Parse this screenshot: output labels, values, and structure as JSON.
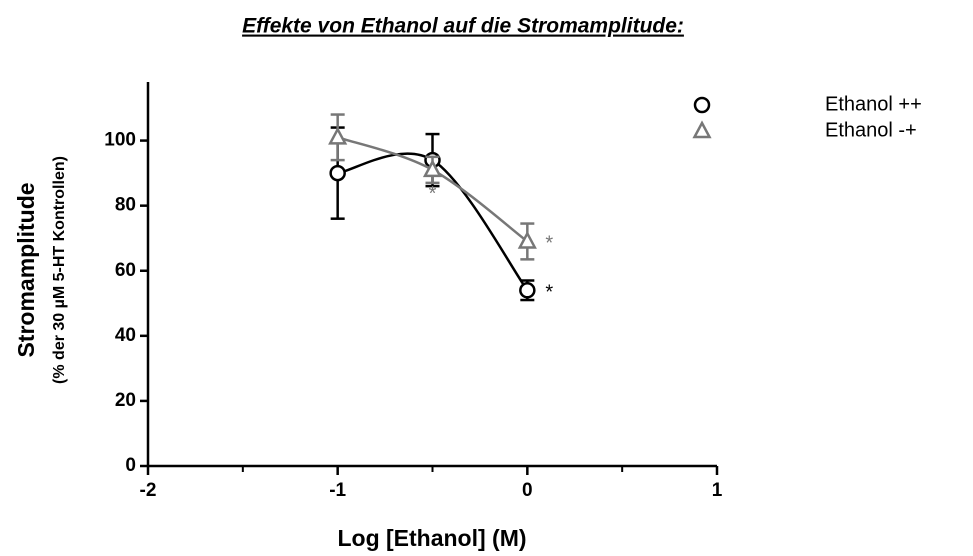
{
  "chart_data": {
    "type": "scatter",
    "title": "Effekte von Ethanol auf die Stromamplitude:",
    "xlabel": "Log [Ethanol] (M)",
    "ylabel": "Stromamplitude",
    "ylabel_sub": "(% der 30 µM 5-HT Kontrollen)",
    "xlim": [
      -2,
      1
    ],
    "xticks": [
      -2,
      -1,
      0,
      1
    ],
    "xminor_ticks": [
      -1.5,
      -0.5,
      0.5
    ],
    "ylim": [
      0,
      118
    ],
    "yticks": [
      0,
      20,
      40,
      60,
      80,
      100
    ],
    "legend": "top-right",
    "fit_curve": true,
    "series": [
      {
        "name": "Ethanol ++",
        "color": "#000000",
        "marker": "circle",
        "x": [
          -1,
          -0.5,
          0
        ],
        "values": [
          90,
          94,
          54
        ],
        "errors": [
          14,
          8,
          3
        ],
        "significance": [
          null,
          null,
          "*"
        ]
      },
      {
        "name": "Ethanol -+",
        "color": "#777777",
        "marker": "triangle",
        "x": [
          -1,
          -0.5,
          0
        ],
        "values": [
          101,
          91,
          69
        ],
        "errors": [
          7,
          4,
          5.5
        ],
        "significance": [
          null,
          "*",
          "*"
        ]
      }
    ]
  }
}
